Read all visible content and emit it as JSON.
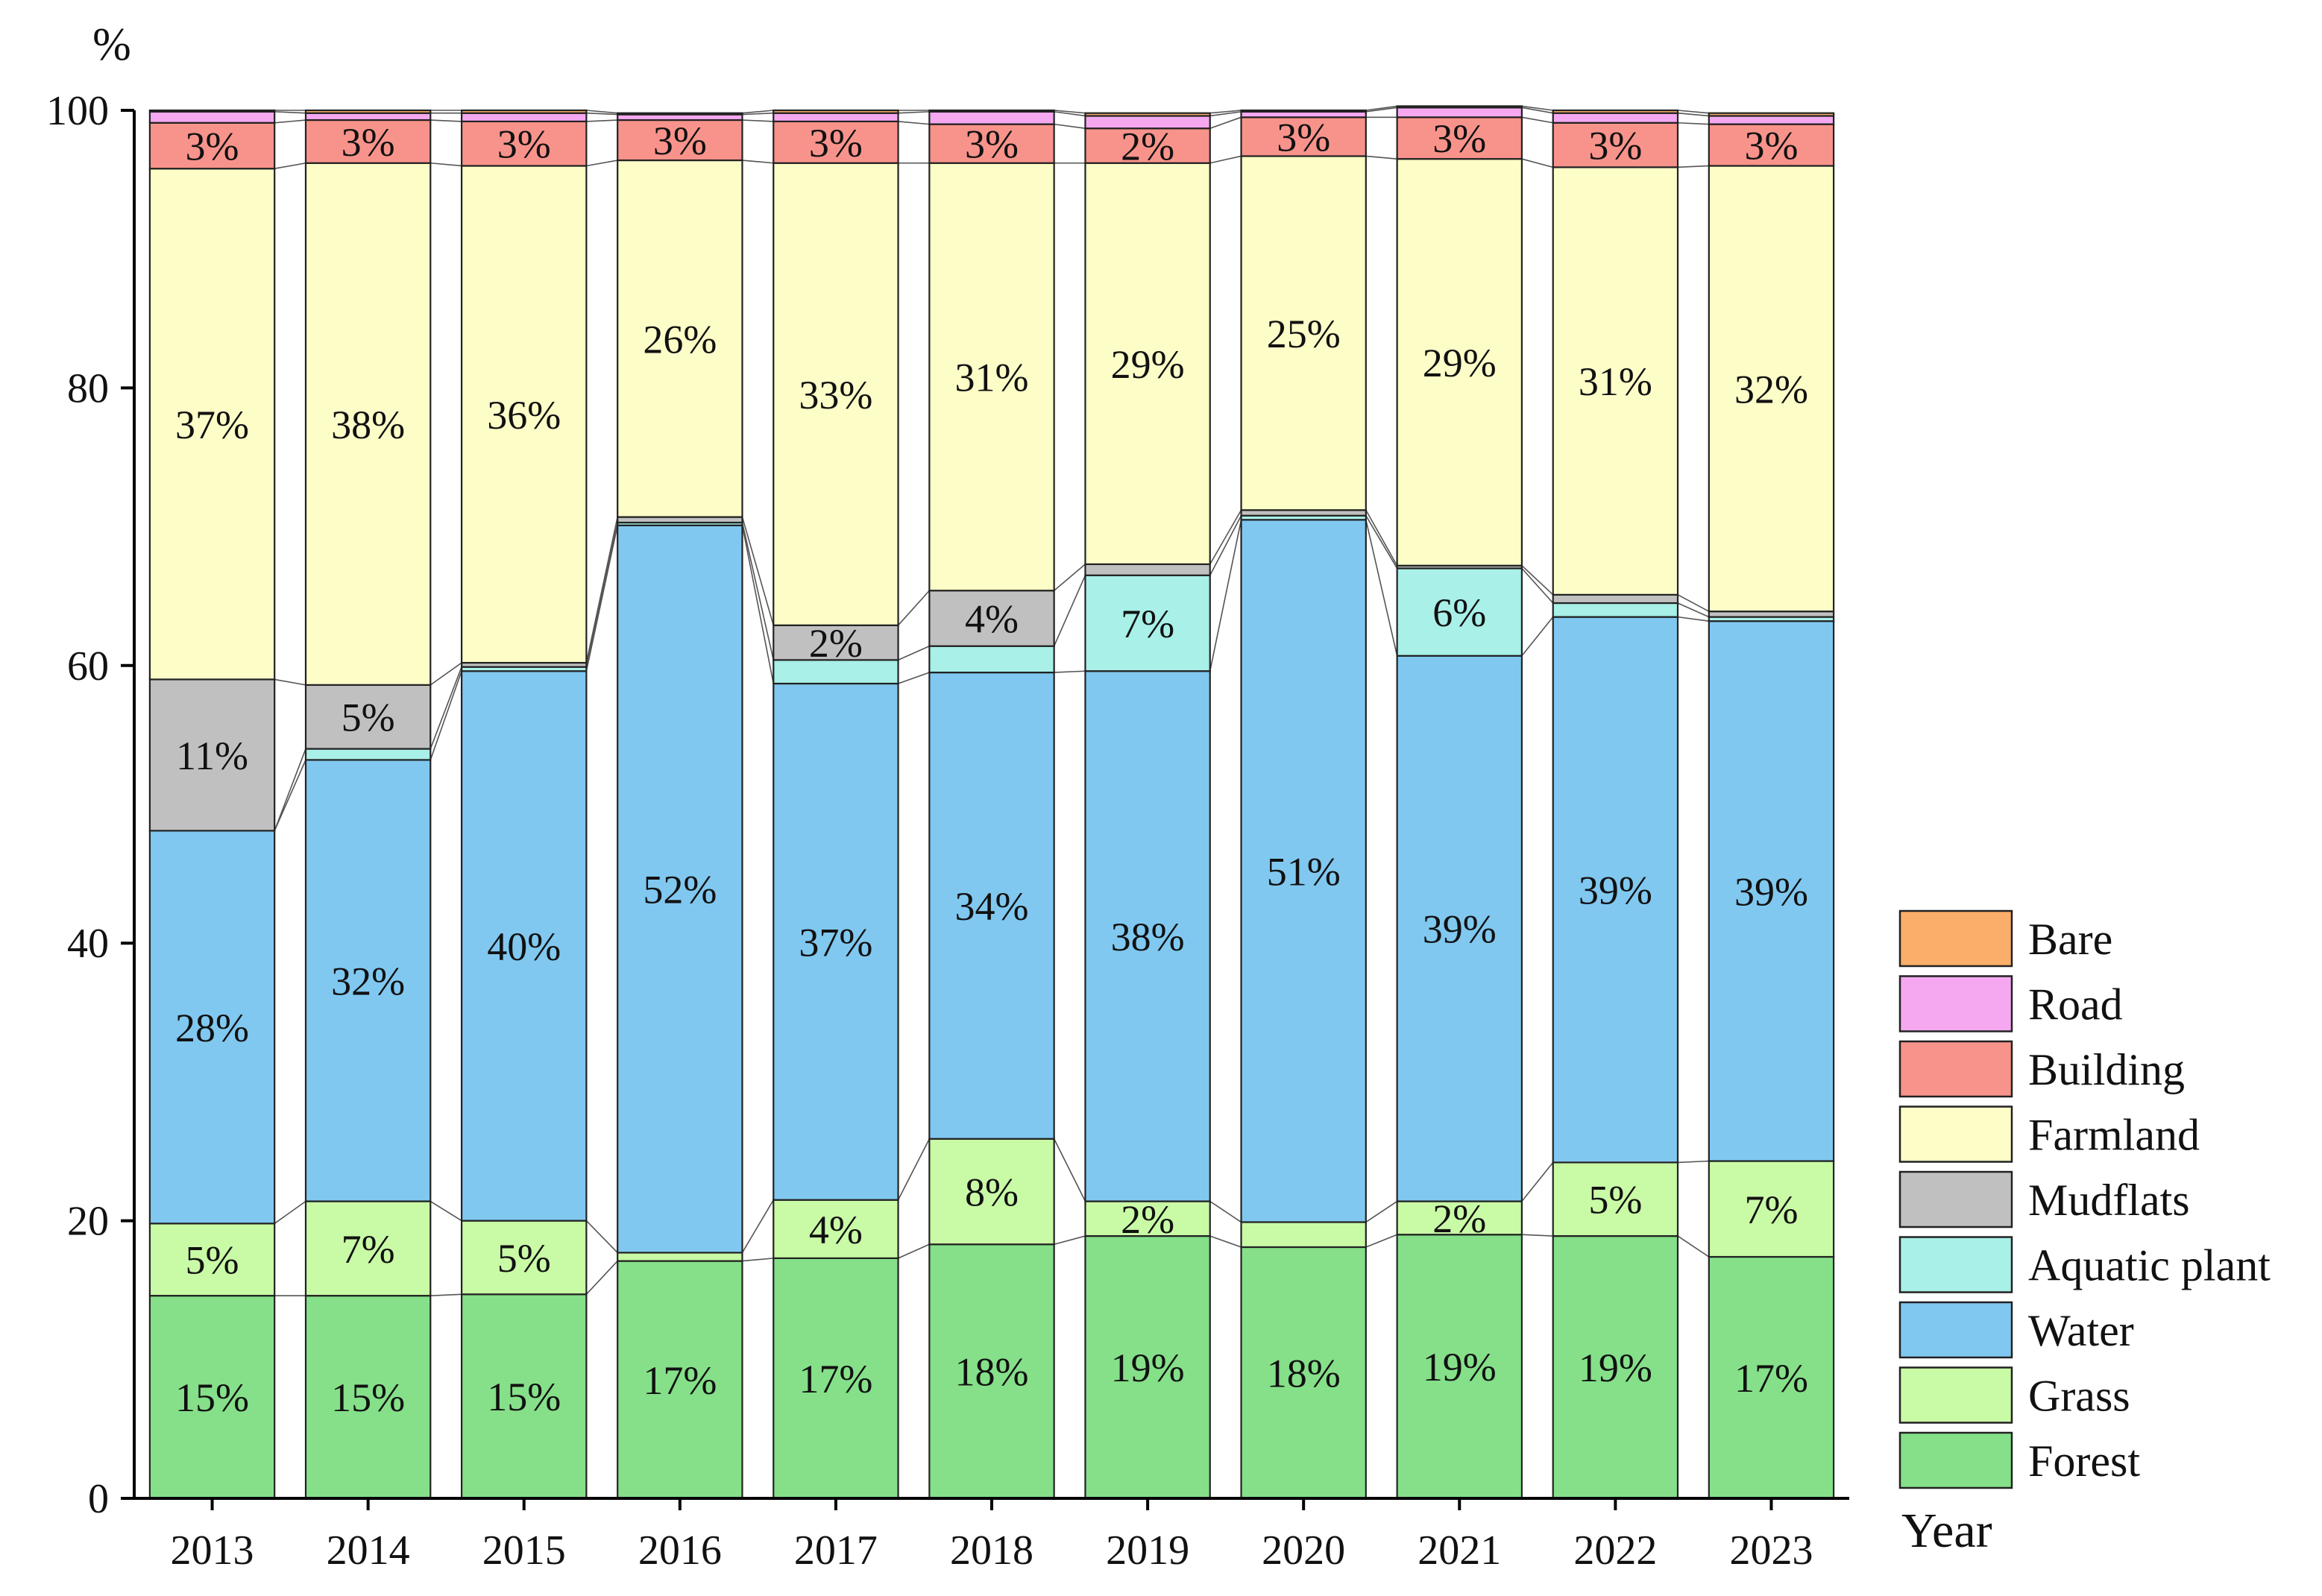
{
  "chart_data": {
    "type": "bar",
    "stacked": true,
    "title": "",
    "ylabel": "%",
    "xlabel": "Year",
    "ylim": [
      0,
      100
    ],
    "yticks": [
      0,
      20,
      40,
      60,
      80,
      100
    ],
    "categories": [
      "2013",
      "2014",
      "2015",
      "2016",
      "2017",
      "2018",
      "2019",
      "2020",
      "2021",
      "2022",
      "2023"
    ],
    "legend_position": "right",
    "series": [
      {
        "name": "Forest",
        "color": "#85E089",
        "values": [
          14.6,
          14.6,
          14.7,
          17.1,
          17.3,
          18.3,
          18.9,
          18.1,
          19.0,
          18.9,
          17.4
        ],
        "labels": [
          "15%",
          "15%",
          "15%",
          "17%",
          "17%",
          "18%",
          "19%",
          "18%",
          "19%",
          "19%",
          "17%"
        ]
      },
      {
        "name": "Grass",
        "color": "#C9FAA6",
        "values": [
          5.2,
          6.8,
          5.3,
          0.6,
          4.2,
          7.6,
          2.5,
          1.8,
          2.4,
          5.3,
          6.9
        ],
        "labels": [
          "5%",
          "7%",
          "5%",
          "",
          "4%",
          "8%",
          "2%",
          "",
          "2%",
          "5%",
          "7%"
        ]
      },
      {
        "name": "Water",
        "color": "#80C8F0",
        "values": [
          28.3,
          31.8,
          39.6,
          52.4,
          37.2,
          33.6,
          38.2,
          50.6,
          39.3,
          39.3,
          38.9
        ],
        "labels": [
          "28%",
          "32%",
          "40%",
          "52%",
          "37%",
          "34%",
          "38%",
          "51%",
          "39%",
          "39%",
          "39%"
        ]
      },
      {
        "name": "Aquatic plant",
        "color": "#A8F0E8",
        "values": [
          0.0,
          0.8,
          0.3,
          0.2,
          1.7,
          1.9,
          6.9,
          0.3,
          6.3,
          1.0,
          0.3
        ],
        "labels": [
          "",
          "",
          "",
          "",
          "",
          "",
          "7%",
          "",
          "6%",
          "",
          " "
        ]
      },
      {
        "name": "Mudflats",
        "color": "#C0C0C0",
        "values": [
          10.9,
          4.6,
          0.3,
          0.4,
          2.5,
          4.0,
          0.8,
          0.4,
          0.2,
          0.6,
          0.4
        ],
        "labels": [
          "11%",
          "5%",
          "",
          "",
          "2%",
          "4%",
          "",
          "",
          "",
          "",
          ""
        ]
      },
      {
        "name": "Farmland",
        "color": "#FDFDC8",
        "values": [
          36.8,
          37.6,
          35.8,
          25.7,
          33.3,
          30.8,
          28.9,
          25.5,
          29.3,
          30.8,
          32.1
        ],
        "labels": [
          "37%",
          "38%",
          "36%",
          "26%",
          "33%",
          "31%",
          "29%",
          "25%",
          "29%",
          "31%",
          "32%"
        ]
      },
      {
        "name": "Building",
        "color": "#F8938B",
        "values": [
          3.3,
          3.1,
          3.2,
          2.9,
          3.0,
          2.8,
          2.5,
          2.8,
          3.0,
          3.2,
          3.0
        ],
        "labels": [
          "3%",
          "3%",
          "3%",
          "3%",
          "3%",
          "3%",
          "2%",
          "3%",
          "3%",
          "3%",
          "3%"
        ]
      },
      {
        "name": "Road",
        "color": "#F5A8F0",
        "values": [
          0.8,
          0.5,
          0.6,
          0.4,
          0.6,
          0.9,
          0.9,
          0.4,
          0.7,
          0.7,
          0.6
        ],
        "labels": [
          "",
          "",
          "",
          "",
          "",
          "",
          "",
          "",
          "",
          "",
          ""
        ]
      },
      {
        "name": "Bare",
        "color": "#FBAE6A",
        "values": [
          0.1,
          0.2,
          0.2,
          0.1,
          0.2,
          0.1,
          0.2,
          0.1,
          0.1,
          0.2,
          0.2
        ],
        "labels": [
          "",
          "",
          "",
          "",
          "",
          "",
          "",
          "",
          "",
          "",
          ""
        ]
      }
    ]
  }
}
